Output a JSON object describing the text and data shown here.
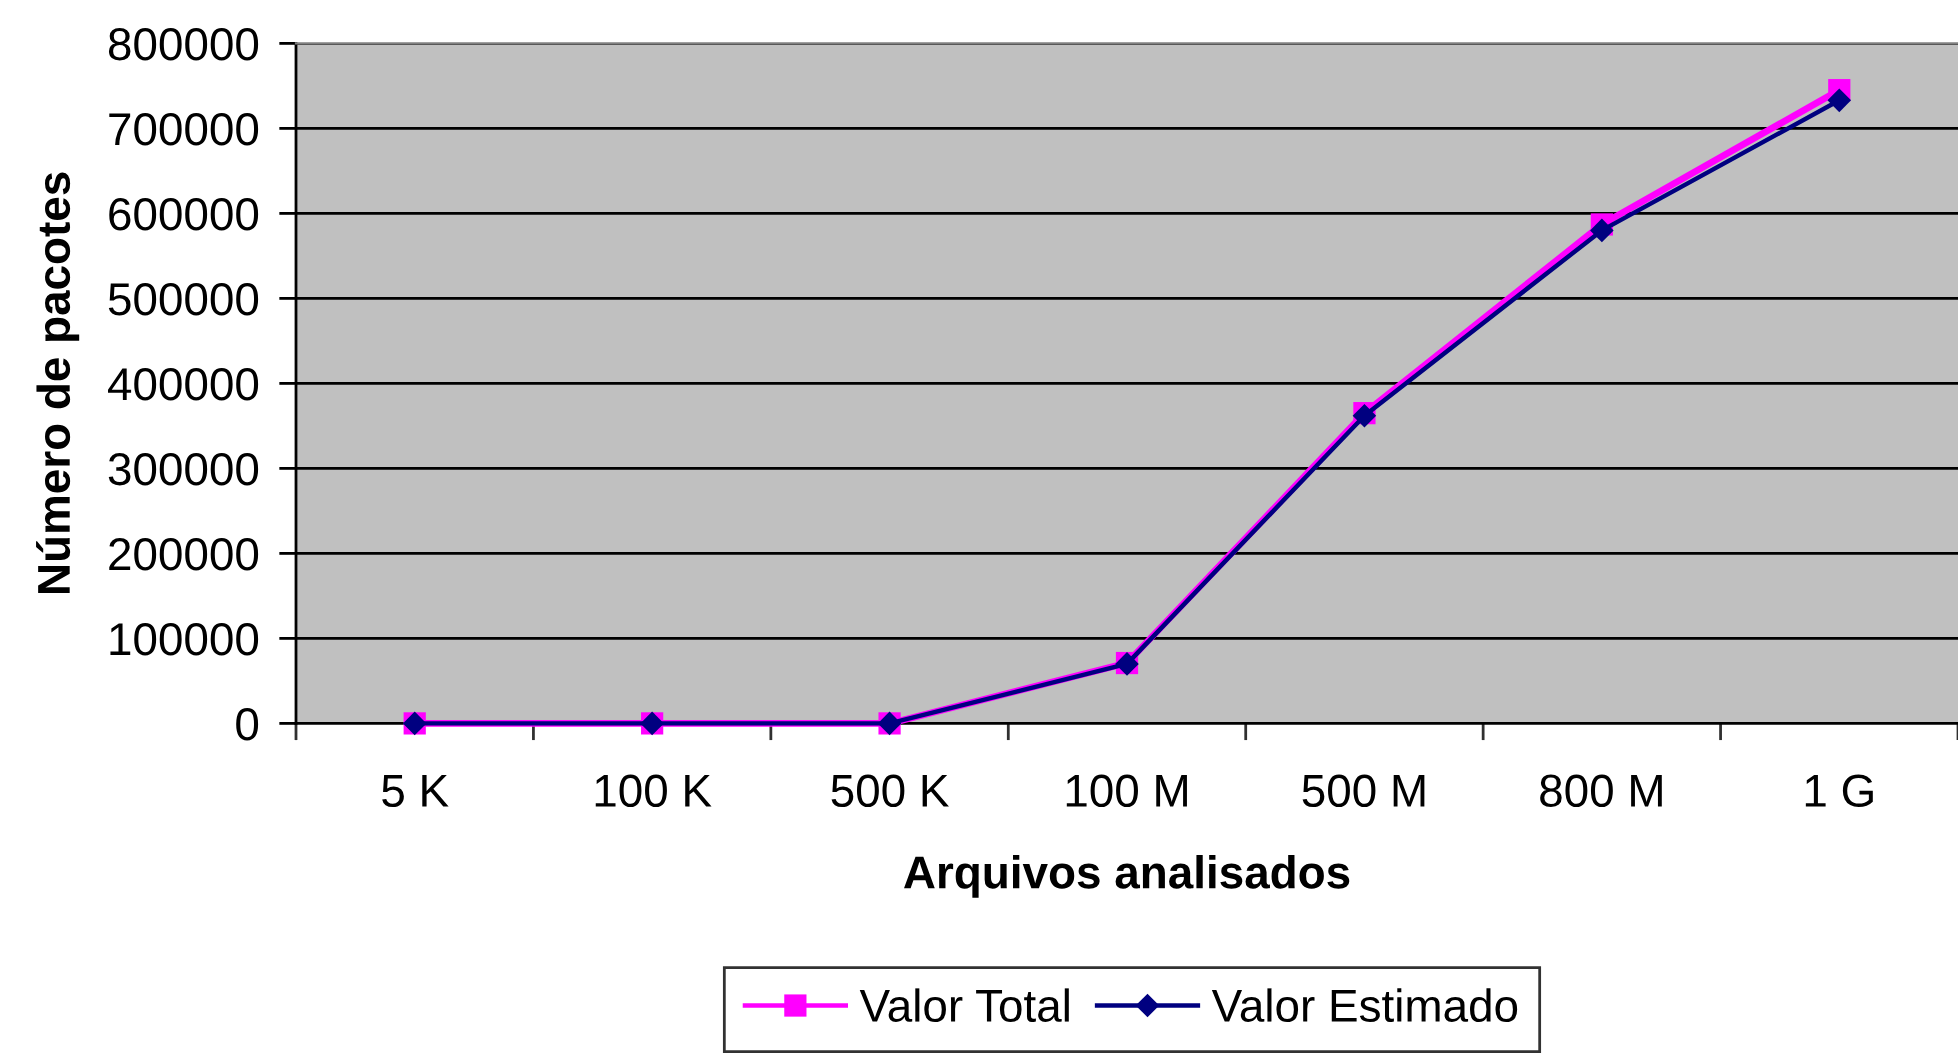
{
  "chart_data": {
    "type": "line",
    "xlabel": "Arquivos analisados",
    "ylabel": "Número de pacotes",
    "categories": [
      "5 K",
      "100 K",
      "500 K",
      "100 M",
      "500 M",
      "800 M",
      "1 G"
    ],
    "series": [
      {
        "name": "Valor Total",
        "color": "#ff00ff",
        "marker": "square",
        "values": [
          0,
          0,
          0,
          71000,
          365000,
          587000,
          745000
        ]
      },
      {
        "name": "Valor Estimado",
        "color": "#000080",
        "marker": "diamond",
        "values": [
          0,
          0,
          0,
          70000,
          362000,
          580000,
          733000
        ]
      }
    ],
    "ylim": [
      0,
      800000
    ],
    "yticks": [
      0,
      100000,
      200000,
      300000,
      400000,
      500000,
      600000,
      700000,
      800000
    ],
    "grid": "y",
    "legend": "bottom"
  }
}
